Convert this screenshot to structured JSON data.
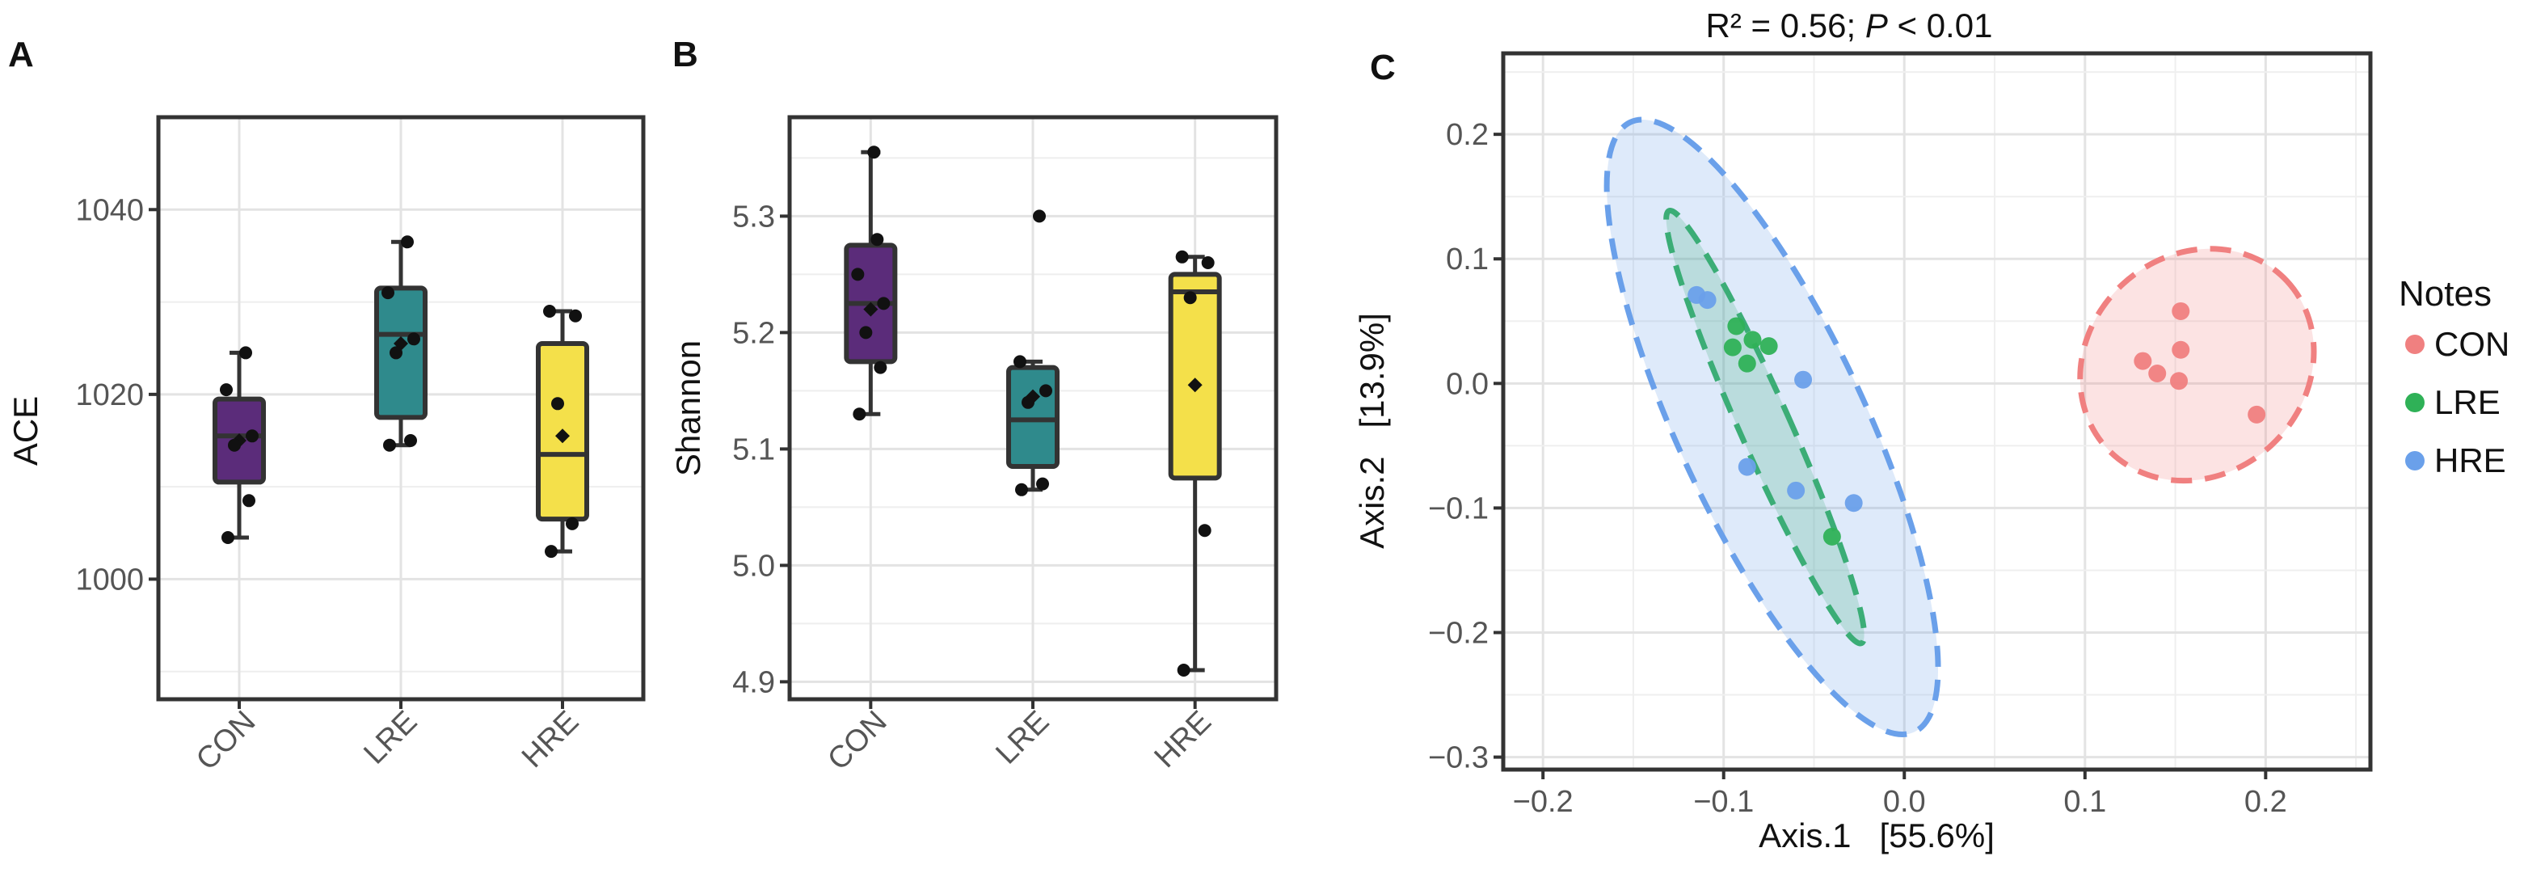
{
  "panel_letters": {
    "a": "A",
    "b": "B",
    "c": "C"
  },
  "chart_data": [
    {
      "type": "box",
      "panel": "A",
      "ylabel": "ACE",
      "categories": [
        "CON",
        "LRE",
        "HRE"
      ],
      "ylim": [
        987,
        1050
      ],
      "yticks": [
        1000,
        1020,
        1040
      ],
      "grid": true,
      "colors": [
        "#5b2c7a",
        "#2f8a8c",
        "#f4e04a"
      ],
      "boxes": [
        {
          "q1": 1010.5,
          "median": 1015.5,
          "q3": 1019.5,
          "whisker_low": 1004.5,
          "whisker_high": 1024.5,
          "mean": 1015.0,
          "points": [
            1004.5,
            1008.5,
            1014.5,
            1015.5,
            1020.5,
            1024.5
          ]
        },
        {
          "q1": 1017.5,
          "median": 1026.5,
          "q3": 1031.5,
          "whisker_low": 1014.5,
          "whisker_high": 1036.5,
          "mean": 1025.5,
          "points": [
            1014.5,
            1015.0,
            1024.5,
            1026.0,
            1031.0,
            1036.5
          ]
        },
        {
          "q1": 1006.5,
          "median": 1013.5,
          "q3": 1025.5,
          "whisker_low": 1003.0,
          "whisker_high": 1029.0,
          "mean": 1015.5,
          "points": [
            1003.0,
            1006.0,
            1019.0,
            1028.5,
            1029.0
          ]
        }
      ]
    },
    {
      "type": "box",
      "panel": "B",
      "ylabel": "Shannon",
      "categories": [
        "CON",
        "LRE",
        "HRE"
      ],
      "ylim": [
        4.885,
        5.385
      ],
      "yticks": [
        4.9,
        5.0,
        5.1,
        5.2,
        5.3
      ],
      "ytick_labels": [
        "4.9",
        "5.0",
        "5.1",
        "5.2",
        "5.3"
      ],
      "grid": true,
      "colors": [
        "#5b2c7a",
        "#2f8a8c",
        "#f4e04a"
      ],
      "boxes": [
        {
          "q1": 5.175,
          "median": 5.225,
          "q3": 5.275,
          "whisker_low": 5.13,
          "whisker_high": 5.355,
          "mean": 5.22,
          "points": [
            5.13,
            5.17,
            5.2,
            5.225,
            5.25,
            5.28,
            5.355
          ]
        },
        {
          "q1": 5.085,
          "median": 5.125,
          "q3": 5.17,
          "whisker_low": 5.065,
          "whisker_high": 5.175,
          "mean": 5.145,
          "points": [
            5.065,
            5.07,
            5.14,
            5.15,
            5.175,
            5.3
          ]
        },
        {
          "q1": 5.075,
          "median": 5.235,
          "q3": 5.25,
          "whisker_low": 4.91,
          "whisker_high": 5.265,
          "mean": 5.155,
          "points": [
            4.91,
            5.03,
            5.23,
            5.26,
            5.265
          ]
        }
      ]
    },
    {
      "type": "scatter",
      "panel": "C",
      "title_text": "R² = 0.56; ",
      "title_p": "P",
      "title_suffix": " < 0.01",
      "xlabel": "Axis.1   [55.6%]",
      "ylabel": "Axis.2   [13.9%]",
      "xlim": [
        -0.222,
        0.258
      ],
      "ylim": [
        -0.31,
        0.265
      ],
      "xticks": [
        -0.2,
        -0.1,
        0.0,
        0.1,
        0.2
      ],
      "xtick_labels": [
        "−0.2",
        "−0.1",
        "0.0",
        "0.1",
        "0.2"
      ],
      "yticks": [
        -0.3,
        -0.2,
        -0.1,
        0.0,
        0.1,
        0.2
      ],
      "ytick_labels": [
        "−0.3",
        "−0.2",
        "−0.1",
        "0.0",
        "0.1",
        "0.2"
      ],
      "grid": true,
      "legend_title": "Notes",
      "legend_placement": "right",
      "series": [
        {
          "name": "CON",
          "color": "#f08080",
          "points": [
            [
              0.132,
              0.018
            ],
            [
              0.14,
              0.008
            ],
            [
              0.152,
              0.002
            ],
            [
              0.153,
              0.058
            ],
            [
              0.153,
              0.027
            ],
            [
              0.195,
              -0.025
            ]
          ],
          "ellipse": {
            "center": [
              0.162,
              0.015
            ],
            "semi_axes": [
              0.068,
              0.088
            ],
            "angle_deg": 43
          }
        },
        {
          "name": "LRE",
          "color": "#2fb157",
          "points": [
            [
              -0.093,
              0.046
            ],
            [
              -0.084,
              0.035
            ],
            [
              -0.075,
              0.03
            ],
            [
              -0.095,
              0.029
            ],
            [
              -0.087,
              0.016
            ],
            [
              -0.04,
              -0.123
            ]
          ],
          "ellipse": {
            "center": [
              -0.077,
              -0.035
            ],
            "semi_axes": [
              0.014,
              0.19
            ],
            "angle_deg": 24
          }
        },
        {
          "name": "HRE",
          "color": "#6aa0ea",
          "points": [
            [
              -0.115,
              0.071
            ],
            [
              -0.109,
              0.067
            ],
            [
              -0.056,
              0.003
            ],
            [
              -0.087,
              -0.067
            ],
            [
              -0.06,
              -0.086
            ],
            [
              -0.028,
              -0.096
            ]
          ],
          "ellipse": {
            "center": [
              -0.073,
              -0.035
            ],
            "semi_axes": [
              0.052,
              0.27
            ],
            "angle_deg": 25
          }
        }
      ]
    }
  ]
}
